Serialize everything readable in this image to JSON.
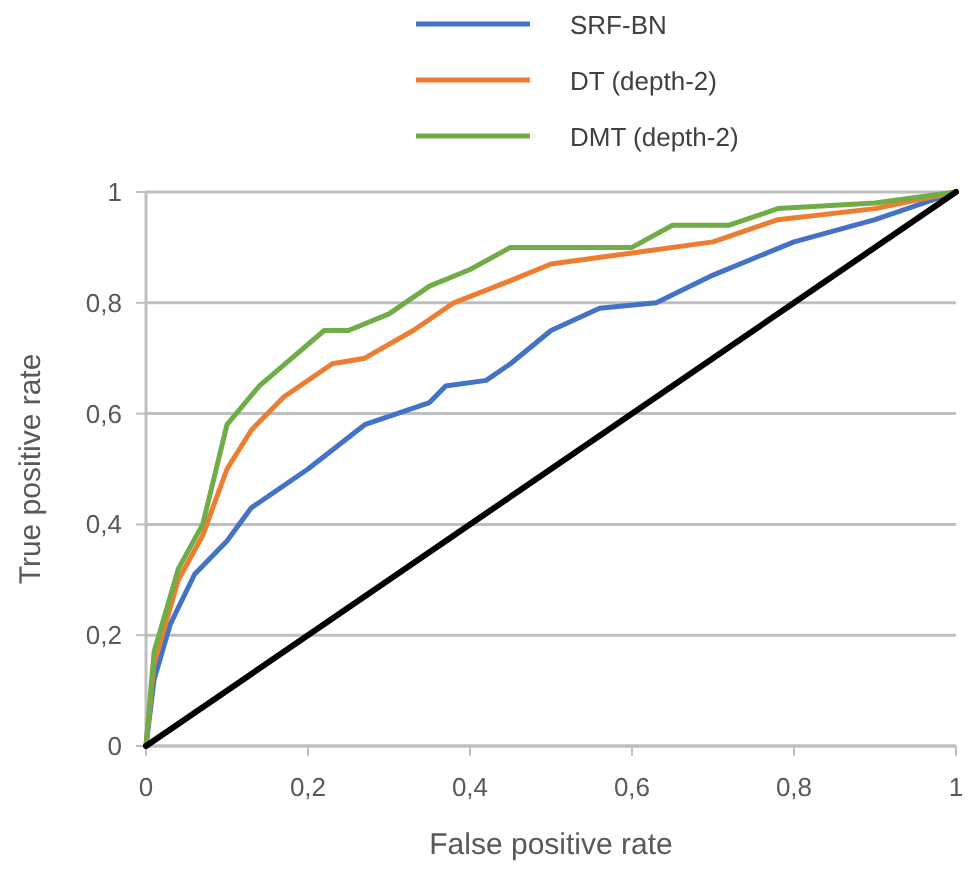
{
  "chart_data": {
    "type": "line",
    "xlabel": "False positive rate",
    "ylabel": "True positive rate",
    "xlim": [
      0,
      1
    ],
    "ylim": [
      0,
      1
    ],
    "xticks": [
      0,
      {
        "value": 0.2,
        "label": "0,2"
      },
      {
        "value": 0.4,
        "label": "0,4"
      },
      {
        "value": 0.6,
        "label": "0,6"
      },
      {
        "value": 0.8,
        "label": "0,8"
      },
      1
    ],
    "yticks": [
      0,
      {
        "value": 0.2,
        "label": "0,2"
      },
      {
        "value": 0.4,
        "label": "0,4"
      },
      {
        "value": 0.6,
        "label": "0,6"
      },
      {
        "value": 0.8,
        "label": "0,8"
      },
      1
    ],
    "grid": "y",
    "legend": "top",
    "marker": "none",
    "line_style": "solid",
    "series": [
      {
        "name": "SRF-BN",
        "color": "#4472c4",
        "x": [
          0,
          0.01,
          0.03,
          0.06,
          0.1,
          0.13,
          0.2,
          0.27,
          0.33,
          0.35,
          0.37,
          0.42,
          0.45,
          0.5,
          0.56,
          0.63,
          0.7,
          0.8,
          0.9,
          1
        ],
        "values": [
          0,
          0.12,
          0.22,
          0.31,
          0.37,
          0.43,
          0.5,
          0.58,
          0.61,
          0.62,
          0.65,
          0.66,
          0.69,
          0.75,
          0.79,
          0.8,
          0.85,
          0.91,
          0.95,
          1
        ]
      },
      {
        "name": "DT (depth-2)",
        "color": "#ed7d31",
        "x": [
          0,
          0.01,
          0.04,
          0.07,
          0.1,
          0.13,
          0.17,
          0.23,
          0.27,
          0.33,
          0.38,
          0.45,
          0.5,
          0.6,
          0.7,
          0.78,
          0.9,
          1
        ],
        "values": [
          0,
          0.15,
          0.3,
          0.38,
          0.5,
          0.57,
          0.63,
          0.69,
          0.7,
          0.75,
          0.8,
          0.84,
          0.87,
          0.89,
          0.91,
          0.95,
          0.97,
          1
        ]
      },
      {
        "name": "DMT (depth-2)",
        "color": "#70ad47",
        "x": [
          0,
          0.01,
          0.04,
          0.07,
          0.1,
          0.14,
          0.22,
          0.25,
          0.3,
          0.35,
          0.4,
          0.45,
          0.55,
          0.6,
          0.65,
          0.72,
          0.78,
          0.9,
          1
        ],
        "values": [
          0,
          0.17,
          0.32,
          0.4,
          0.58,
          0.65,
          0.75,
          0.75,
          0.78,
          0.83,
          0.86,
          0.9,
          0.9,
          0.9,
          0.94,
          0.94,
          0.97,
          0.98,
          1
        ]
      },
      {
        "color": "#000000",
        "x": [
          0,
          1
        ],
        "values": [
          0,
          1
        ]
      }
    ]
  }
}
